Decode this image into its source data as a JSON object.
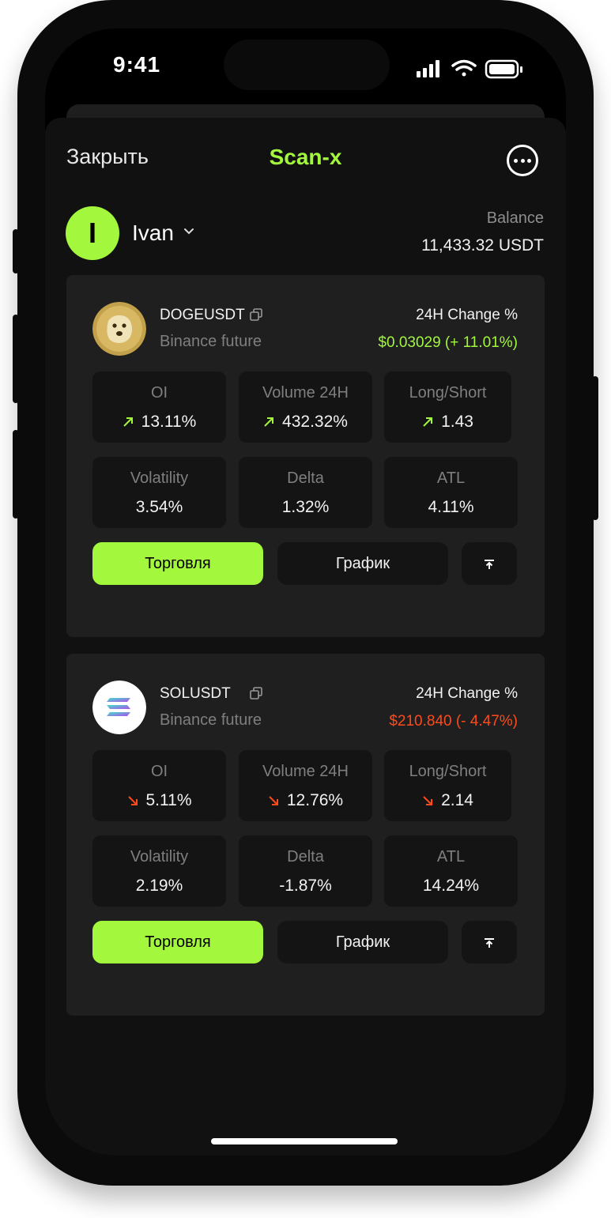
{
  "status_bar": {
    "time": "9:41"
  },
  "header": {
    "close_label": "Закрыть",
    "title": "Scan-x",
    "more_icon": "more-horizontal-icon"
  },
  "user": {
    "initial": "I",
    "name": "Ivan",
    "balance_label": "Balance",
    "balance_value": "11,433.32 USDT"
  },
  "colors": {
    "accent": "#a3f73d",
    "up": "#a3f73d",
    "down": "#ff4a1c"
  },
  "cards": [
    {
      "symbol": "DOGEUSDT",
      "exchange": "Binance future",
      "change_label": "24H Change %",
      "change_value": "$0.03029  (+ 11.01%)",
      "direction": "up",
      "metrics": [
        {
          "label": "OI",
          "value": "13.11%"
        },
        {
          "label": "Volume 24H",
          "value": "432.32%"
        },
        {
          "label": "Long/Short",
          "value": "1.43"
        },
        {
          "label": "Volatility",
          "value": "3.54%"
        },
        {
          "label": "Delta",
          "value": "1.32%"
        },
        {
          "label": "ATL",
          "value": "4.11%"
        }
      ],
      "trade_label": "Торговля",
      "chart_label": "График"
    },
    {
      "symbol": "SOLUSDT",
      "exchange": "Binance future",
      "change_label": "24H Change %",
      "change_value": "$210.840 (- 4.47%)",
      "direction": "down",
      "metrics": [
        {
          "label": "OI",
          "value": "5.11%"
        },
        {
          "label": "Volume 24H",
          "value": "12.76%"
        },
        {
          "label": "Long/Short",
          "value": "2.14"
        },
        {
          "label": "Volatility",
          "value": "2.19%"
        },
        {
          "label": "Delta",
          "value": "-1.87%"
        },
        {
          "label": "ATL",
          "value": "14.24%"
        }
      ],
      "trade_label": "Торговля",
      "chart_label": "График"
    }
  ]
}
